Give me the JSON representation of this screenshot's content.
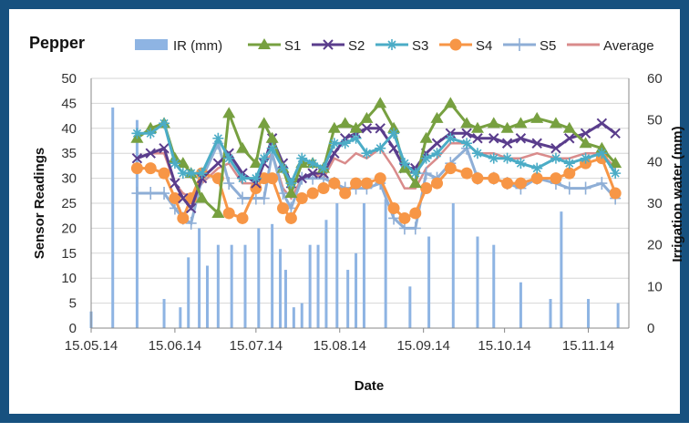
{
  "chart_data": {
    "type": "line",
    "title": "Pepper",
    "xlabel": "Date",
    "ylabel": "Sensor Readings",
    "y2label": "Irrigation water (mm)",
    "ylim": [
      0,
      50
    ],
    "y2lim": [
      0,
      60
    ],
    "xlim": [
      "2014-05-15",
      "2014-11-30"
    ],
    "x_ticks": [
      "15.05.14",
      "15.06.14",
      "15.07.14",
      "15.08.14",
      "15.09.14",
      "15.10.14",
      "15.11.14"
    ],
    "y_ticks": [
      0,
      5,
      10,
      15,
      20,
      25,
      30,
      35,
      40,
      45,
      50
    ],
    "y2_ticks": [
      0,
      10,
      20,
      30,
      40,
      50,
      60
    ],
    "grid": true,
    "legend_position": "top",
    "bars": {
      "name": "IR  (mm)",
      "color": "#8eb4e3",
      "x": [
        "2014-05-15",
        "2014-05-23",
        "2014-06-01",
        "2014-06-11",
        "2014-06-17",
        "2014-06-20",
        "2014-06-24",
        "2014-06-27",
        "2014-07-01",
        "2014-07-06",
        "2014-07-11",
        "2014-07-16",
        "2014-07-21",
        "2014-07-24",
        "2014-07-26",
        "2014-07-29",
        "2014-08-01",
        "2014-08-04",
        "2014-08-07",
        "2014-08-10",
        "2014-08-14",
        "2014-08-18",
        "2014-08-21",
        "2014-08-24",
        "2014-09-01",
        "2014-09-10",
        "2014-09-17",
        "2014-09-26",
        "2014-10-05",
        "2014-10-11",
        "2014-10-21",
        "2014-11-01",
        "2014-11-05",
        "2014-11-15",
        "2014-11-26"
      ],
      "values": [
        4,
        53,
        50,
        7,
        5,
        17,
        24,
        15,
        20,
        20,
        20,
        24,
        25,
        19,
        14,
        5,
        6,
        20,
        20,
        26,
        30,
        14,
        18,
        30,
        31,
        10,
        22,
        30,
        22,
        20,
        11,
        7,
        28,
        7,
        6
      ]
    },
    "x": [
      "2014-06-01",
      "2014-06-06",
      "2014-06-11",
      "2014-06-15",
      "2014-06-18",
      "2014-06-21",
      "2014-06-25",
      "2014-07-01",
      "2014-07-05",
      "2014-07-10",
      "2014-07-15",
      "2014-07-18",
      "2014-07-21",
      "2014-07-25",
      "2014-07-28",
      "2014-08-01",
      "2014-08-05",
      "2014-08-09",
      "2014-08-13",
      "2014-08-17",
      "2014-08-21",
      "2014-08-25",
      "2014-08-30",
      "2014-09-04",
      "2014-09-08",
      "2014-09-12",
      "2014-09-16",
      "2014-09-20",
      "2014-09-25",
      "2014-10-01",
      "2014-10-05",
      "2014-10-11",
      "2014-10-16",
      "2014-10-21",
      "2014-10-27",
      "2014-11-03",
      "2014-11-08",
      "2014-11-14",
      "2014-11-20",
      "2014-11-25"
    ],
    "series": [
      {
        "name": "S1",
        "color": "#77a040",
        "marker": "triangle",
        "values": [
          38,
          40,
          41,
          34,
          33,
          31,
          26,
          23,
          43,
          36,
          33,
          41,
          38,
          32,
          27,
          33,
          33,
          32,
          40,
          41,
          40,
          42,
          45,
          40,
          32,
          29,
          38,
          42,
          45,
          41,
          40,
          41,
          40,
          41,
          42,
          41,
          40,
          37,
          36,
          33
        ]
      },
      {
        "name": "S2",
        "color": "#5a3d8c",
        "marker": "cross",
        "values": [
          34,
          35,
          36,
          29,
          26,
          24,
          30,
          33,
          35,
          31,
          29,
          33,
          38,
          33,
          29,
          30,
          31,
          31,
          35,
          38,
          39,
          40,
          40,
          36,
          32,
          32,
          35,
          37,
          39,
          39,
          38,
          38,
          37,
          38,
          37,
          36,
          38,
          39,
          41,
          39
        ]
      },
      {
        "name": "S3",
        "color": "#4bacc6",
        "marker": "star",
        "values": [
          39,
          39,
          41,
          33,
          31,
          31,
          31,
          38,
          34,
          30,
          30,
          34,
          36,
          32,
          29,
          34,
          33,
          32,
          37,
          37,
          38,
          35,
          36,
          39,
          33,
          31,
          34,
          35,
          38,
          37,
          35,
          34,
          34,
          33,
          32,
          34,
          33,
          34,
          35,
          31
        ]
      },
      {
        "name": "S4",
        "color": "#f79646",
        "marker": "circle",
        "values": [
          32,
          32,
          31,
          26,
          22,
          26,
          31,
          30,
          23,
          22,
          28,
          30,
          30,
          24,
          22,
          26,
          27,
          28,
          29,
          27,
          29,
          29,
          30,
          24,
          22,
          23,
          28,
          29,
          32,
          31,
          30,
          30,
          29,
          29,
          30,
          30,
          31,
          33,
          34,
          27
        ]
      },
      {
        "name": "S5",
        "color": "#8eaed6",
        "marker": "plus",
        "values": [
          27,
          27,
          27,
          24,
          22,
          21,
          30,
          37,
          29,
          26,
          26,
          26,
          35,
          27,
          24,
          30,
          30,
          30,
          29,
          28,
          28,
          28,
          29,
          22,
          20,
          20,
          31,
          30,
          33,
          36,
          30,
          30,
          29,
          28,
          30,
          29,
          28,
          28,
          29,
          26
        ]
      },
      {
        "name": "Average",
        "color": "#d98b8b",
        "marker": "none",
        "values": [
          34,
          35,
          35,
          29,
          27,
          26,
          29,
          32,
          33,
          29,
          29,
          33,
          35,
          28,
          26,
          30,
          31,
          30,
          34,
          33,
          35,
          34,
          36,
          32,
          28,
          28,
          32,
          34,
          37,
          37,
          35,
          35,
          34,
          34,
          35,
          34,
          34,
          35,
          35,
          32
        ]
      }
    ]
  }
}
